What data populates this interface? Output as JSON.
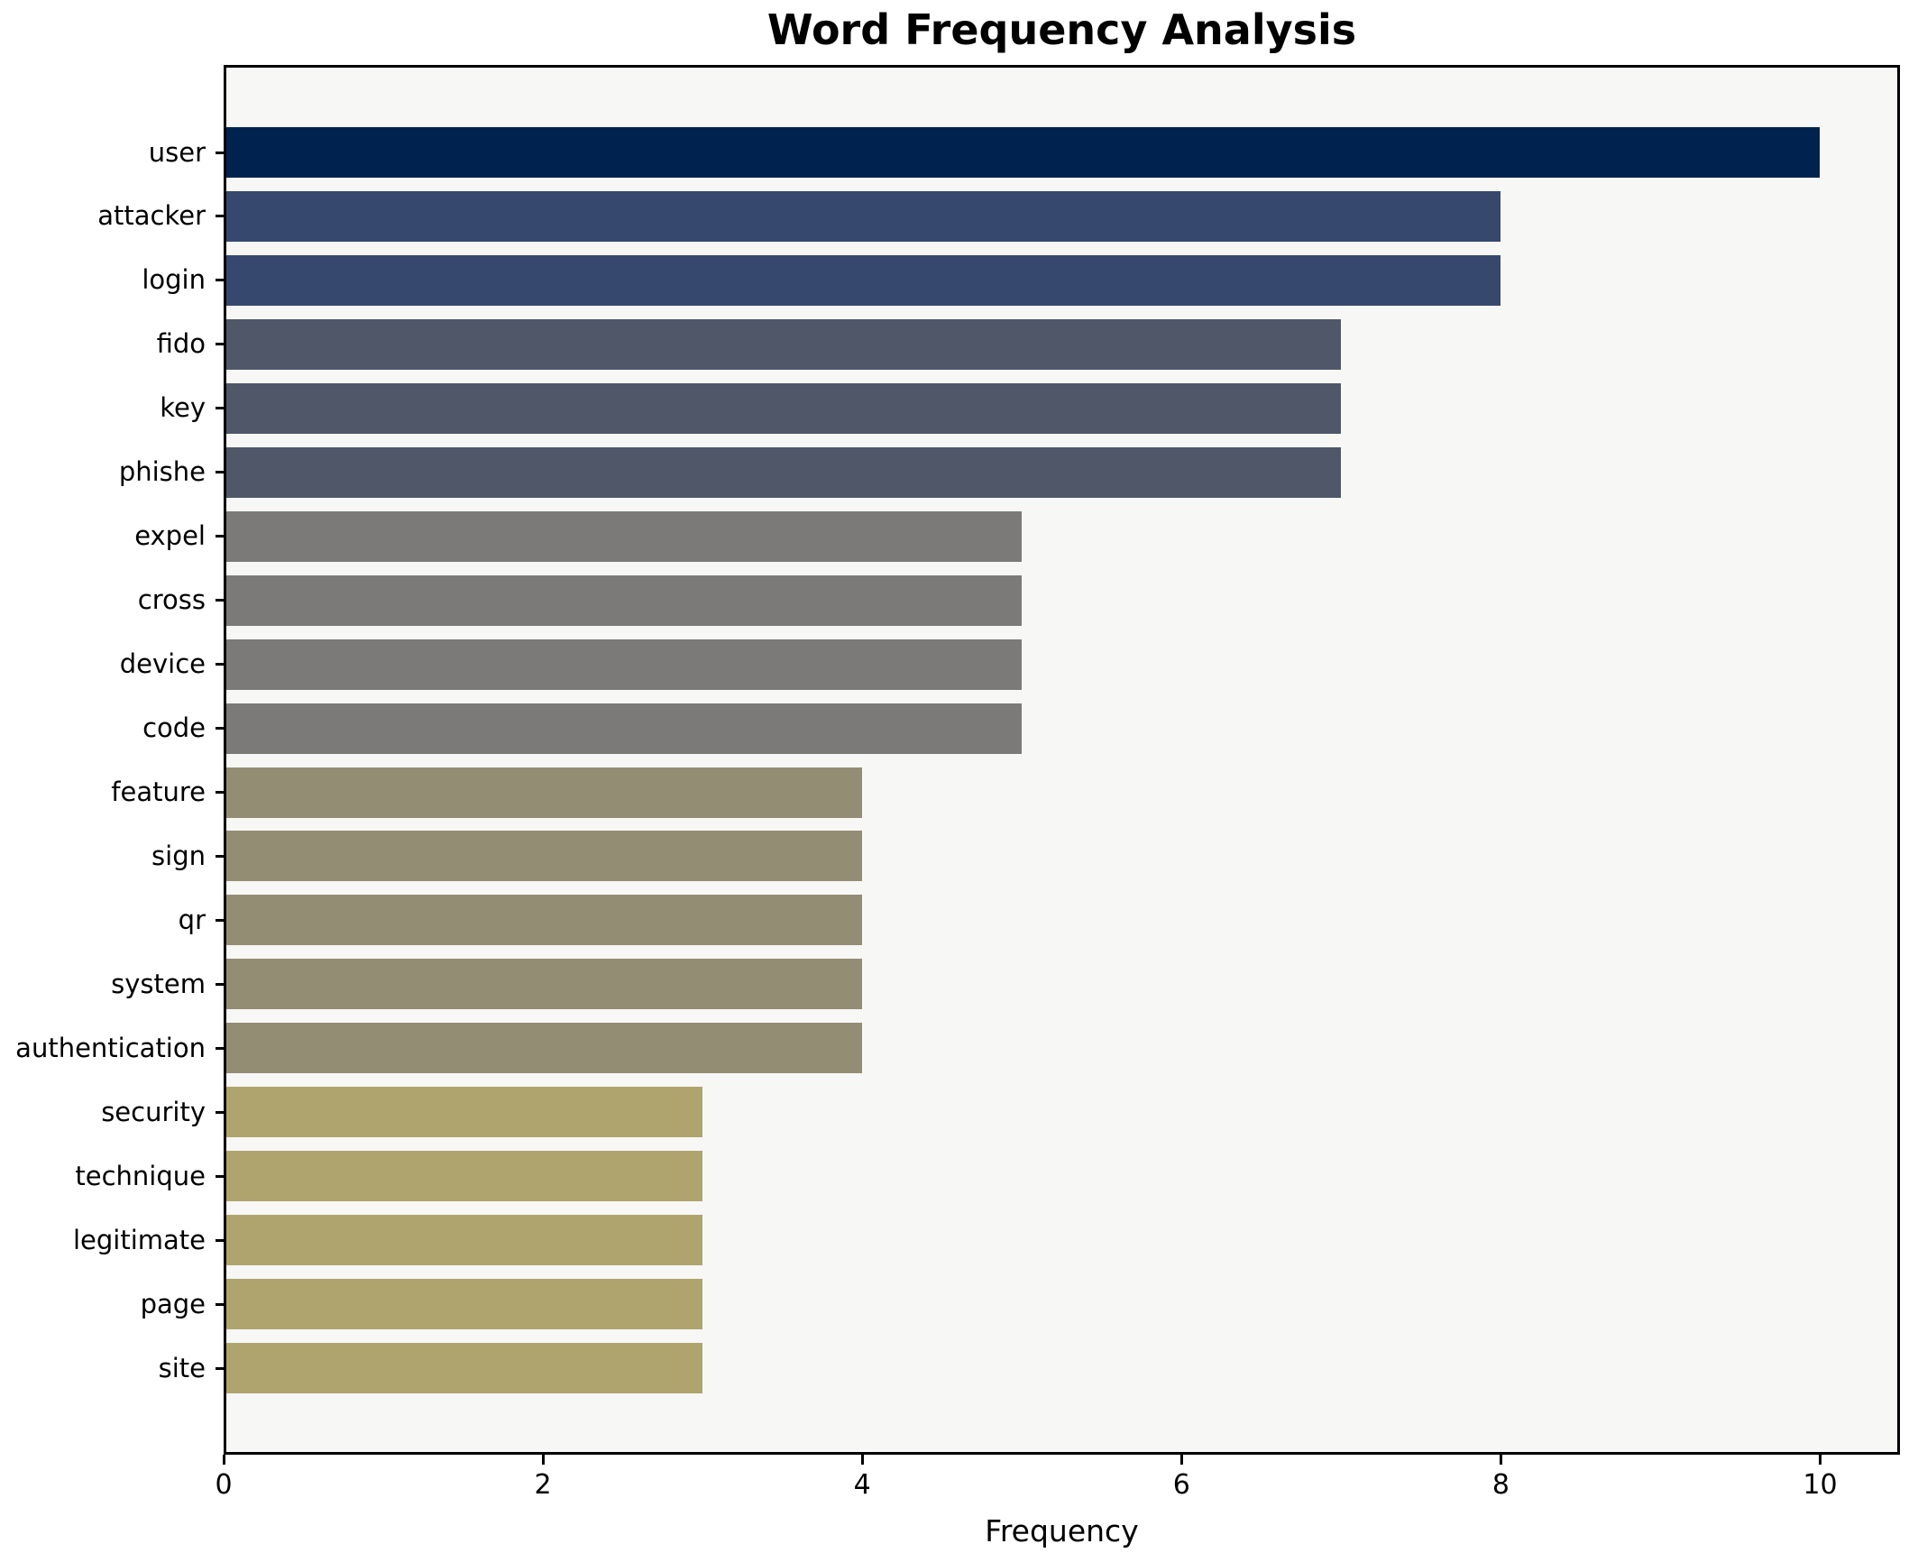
{
  "chart_data": {
    "type": "bar",
    "orientation": "horizontal",
    "title": "Word Frequency Analysis",
    "xlabel": "Frequency",
    "ylabel": "",
    "categories": [
      "user",
      "attacker",
      "login",
      "fido",
      "key",
      "phishe",
      "expel",
      "cross",
      "device",
      "code",
      "feature",
      "sign",
      "qr",
      "system",
      "authentication",
      "security",
      "technique",
      "legitimate",
      "page",
      "site"
    ],
    "values": [
      10,
      8,
      8,
      7,
      7,
      7,
      5,
      5,
      5,
      5,
      4,
      4,
      4,
      4,
      4,
      3,
      3,
      3,
      3,
      3
    ],
    "bar_colors": [
      "#00224e",
      "#36486d",
      "#36486d",
      "#4f5769",
      "#4f5769",
      "#4f5769",
      "#7b7a78",
      "#7b7a78",
      "#7b7a78",
      "#7b7a78",
      "#938d73",
      "#938d73",
      "#938d73",
      "#938d73",
      "#938d73",
      "#b0a46e",
      "#b0a46e",
      "#b0a46e",
      "#b0a46e",
      "#b0a46e"
    ],
    "xticks": [
      0,
      2,
      4,
      6,
      8,
      10
    ],
    "xlim": [
      0,
      10.5
    ],
    "grid": false,
    "legend": null,
    "plot_background": "#f7f7f6",
    "figure_background": "#ffffff",
    "spine_color": "#000000"
  }
}
